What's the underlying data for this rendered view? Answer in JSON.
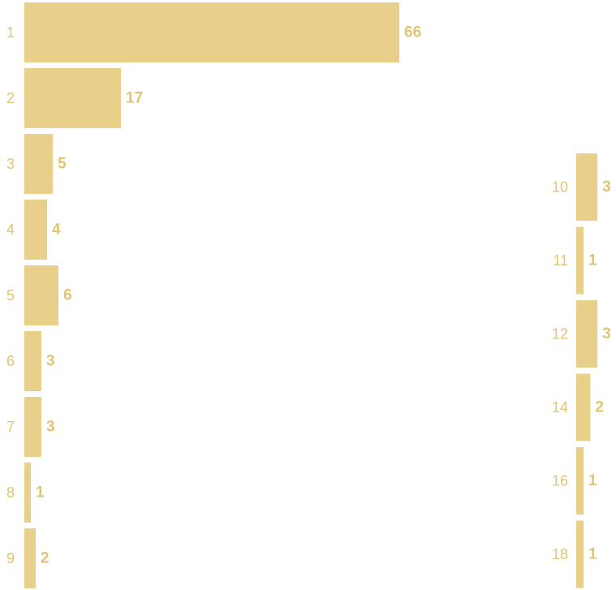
{
  "chart_data": [
    {
      "type": "bar",
      "orientation": "horizontal",
      "categories": [
        "1",
        "2",
        "3",
        "4",
        "5",
        "6",
        "7",
        "8",
        "9"
      ],
      "values": [
        66,
        17,
        5,
        4,
        6,
        3,
        3,
        1,
        2
      ],
      "title": "",
      "xlabel": "",
      "ylabel": "",
      "grid": false,
      "bar_color": "#e9d08a",
      "label_color": "#e1c571"
    },
    {
      "type": "bar",
      "orientation": "horizontal",
      "categories": [
        "10",
        "11",
        "12",
        "14",
        "16",
        "18"
      ],
      "values": [
        3,
        1,
        3,
        2,
        1,
        1
      ],
      "title": "",
      "xlabel": "",
      "ylabel": "",
      "grid": false,
      "bar_color": "#e9d08a",
      "label_color": "#e1c571"
    }
  ]
}
